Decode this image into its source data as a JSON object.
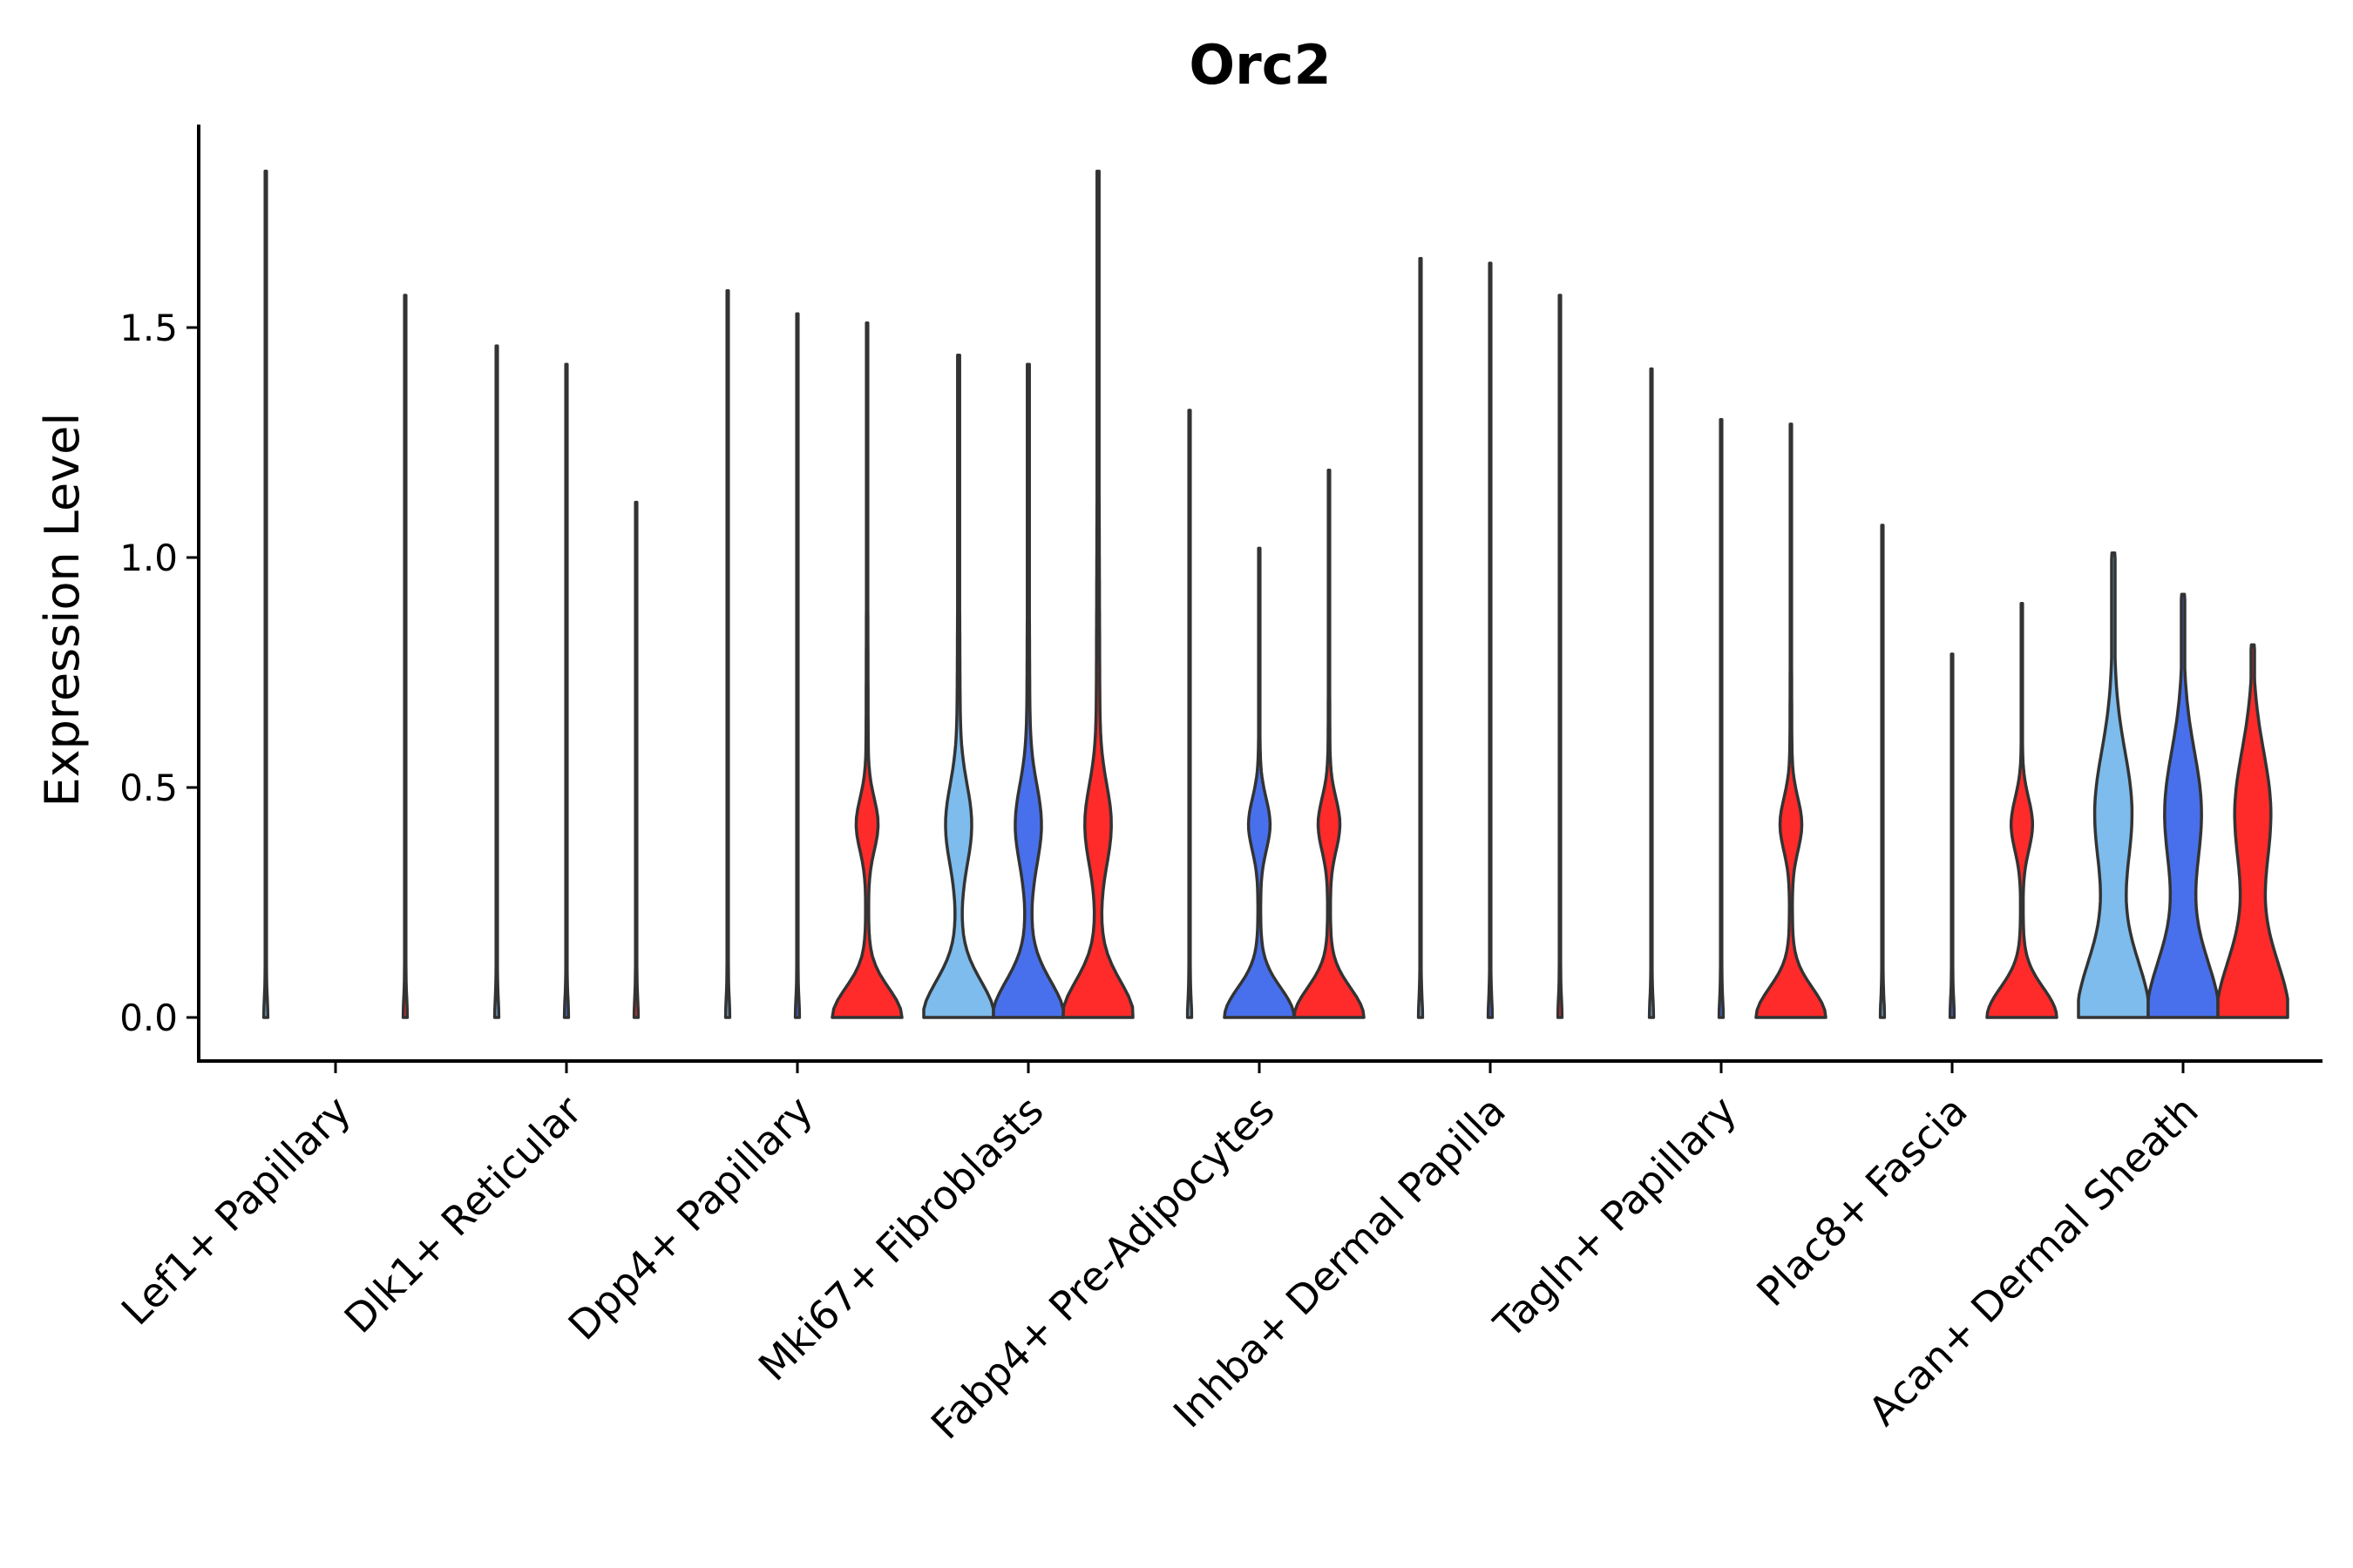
{
  "chart_data": {
    "type": "violin",
    "title": "Orc2",
    "xlabel": "",
    "ylabel": "Expression Level",
    "ylim": [
      -0.09,
      1.95
    ],
    "yticks": [
      0.0,
      0.5,
      1.0,
      1.5
    ],
    "ytick_labels": [
      "0.0",
      "0.5",
      "1.0",
      "1.5"
    ],
    "categories": [
      "Lef1+ Papillary",
      "Dlk1+ Reticular",
      "Dpp4+ Papillary",
      "Mki67+ Fibroblasts",
      "Fabp4+ Pre-Adipocytes",
      "Inhba+ Dermal Papilla",
      "Tagln+ Papillary",
      "Plac8+ Fascia",
      "Acan+ Dermal Sheath"
    ],
    "series_colors": [
      "#7dbcec",
      "#4870ec",
      "#ff2a2a"
    ],
    "violins": [
      {
        "category": 0,
        "series": 0,
        "max": 1.84,
        "shape": "spike"
      },
      {
        "category": 0,
        "series": 2,
        "max": 1.57,
        "shape": "spike"
      },
      {
        "category": 1,
        "series": 0,
        "max": 1.46,
        "shape": "spike"
      },
      {
        "category": 1,
        "series": 1,
        "max": 1.42,
        "shape": "spike"
      },
      {
        "category": 1,
        "series": 2,
        "max": 1.12,
        "shape": "spike"
      },
      {
        "category": 2,
        "series": 0,
        "max": 1.58,
        "shape": "spike"
      },
      {
        "category": 2,
        "series": 1,
        "max": 1.53,
        "shape": "spike"
      },
      {
        "category": 2,
        "series": 2,
        "max": 1.51,
        "shape": "thin"
      },
      {
        "category": 3,
        "series": 0,
        "max": 1.44,
        "shape": "body"
      },
      {
        "category": 3,
        "series": 1,
        "max": 1.42,
        "shape": "body"
      },
      {
        "category": 3,
        "series": 2,
        "max": 1.84,
        "shape": "body"
      },
      {
        "category": 4,
        "series": 0,
        "max": 1.32,
        "shape": "spike"
      },
      {
        "category": 4,
        "series": 1,
        "max": 1.02,
        "shape": "thin"
      },
      {
        "category": 4,
        "series": 2,
        "max": 1.19,
        "shape": "thin"
      },
      {
        "category": 5,
        "series": 0,
        "max": 1.65,
        "shape": "spike"
      },
      {
        "category": 5,
        "series": 1,
        "max": 1.64,
        "shape": "spike"
      },
      {
        "category": 5,
        "series": 2,
        "max": 1.57,
        "shape": "spike"
      },
      {
        "category": 6,
        "series": 0,
        "max": 1.41,
        "shape": "spike"
      },
      {
        "category": 6,
        "series": 1,
        "max": 1.3,
        "shape": "spike"
      },
      {
        "category": 6,
        "series": 2,
        "max": 1.29,
        "shape": "thin"
      },
      {
        "category": 7,
        "series": 0,
        "max": 1.07,
        "shape": "spike"
      },
      {
        "category": 7,
        "series": 1,
        "max": 0.79,
        "shape": "spike"
      },
      {
        "category": 7,
        "series": 2,
        "max": 0.9,
        "shape": "thin"
      },
      {
        "category": 8,
        "series": 0,
        "max": 1.01,
        "shape": "wide"
      },
      {
        "category": 8,
        "series": 1,
        "max": 0.92,
        "shape": "wide"
      },
      {
        "category": 8,
        "series": 2,
        "max": 0.81,
        "shape": "wide"
      }
    ]
  }
}
